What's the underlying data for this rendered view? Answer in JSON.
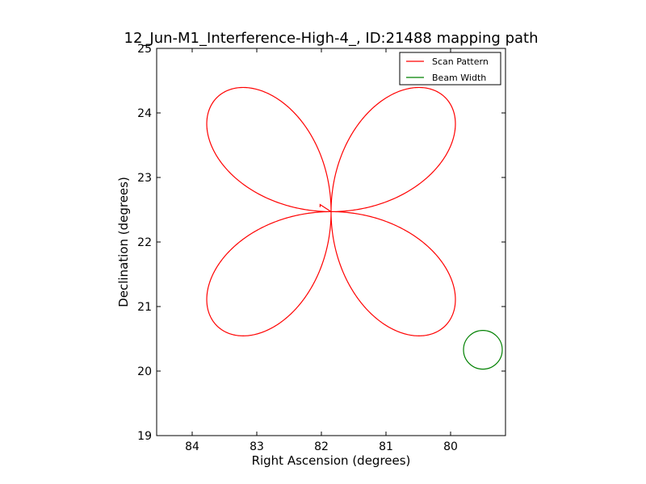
{
  "chart_data": {
    "type": "line",
    "title": "12_Jun-M1_Interference-High-4_, ID:21488 mapping path",
    "xlabel": "Right Ascension (degrees)",
    "ylabel": "Declination (degrees)",
    "xlim": [
      84.55,
      79.15
    ],
    "ylim": [
      19,
      25
    ],
    "x_ticks": [
      84,
      83,
      82,
      81,
      80
    ],
    "y_ticks": [
      19,
      20,
      21,
      22,
      23,
      24,
      25
    ],
    "grid": false,
    "legend_position": "top-right",
    "series": [
      {
        "name": "Scan Pattern",
        "color": "#ff0000",
        "kind": "four-petal rosette",
        "center": [
          81.85,
          22.47
        ],
        "petal_reach": 2.5,
        "start_offset": [
          [
            82.02,
            22.54
          ],
          [
            82.02,
            22.58
          ]
        ]
      },
      {
        "name": "Beam Width",
        "color": "#008000",
        "kind": "circle",
        "center": [
          79.5,
          20.33
        ],
        "radius": 0.3
      }
    ]
  }
}
